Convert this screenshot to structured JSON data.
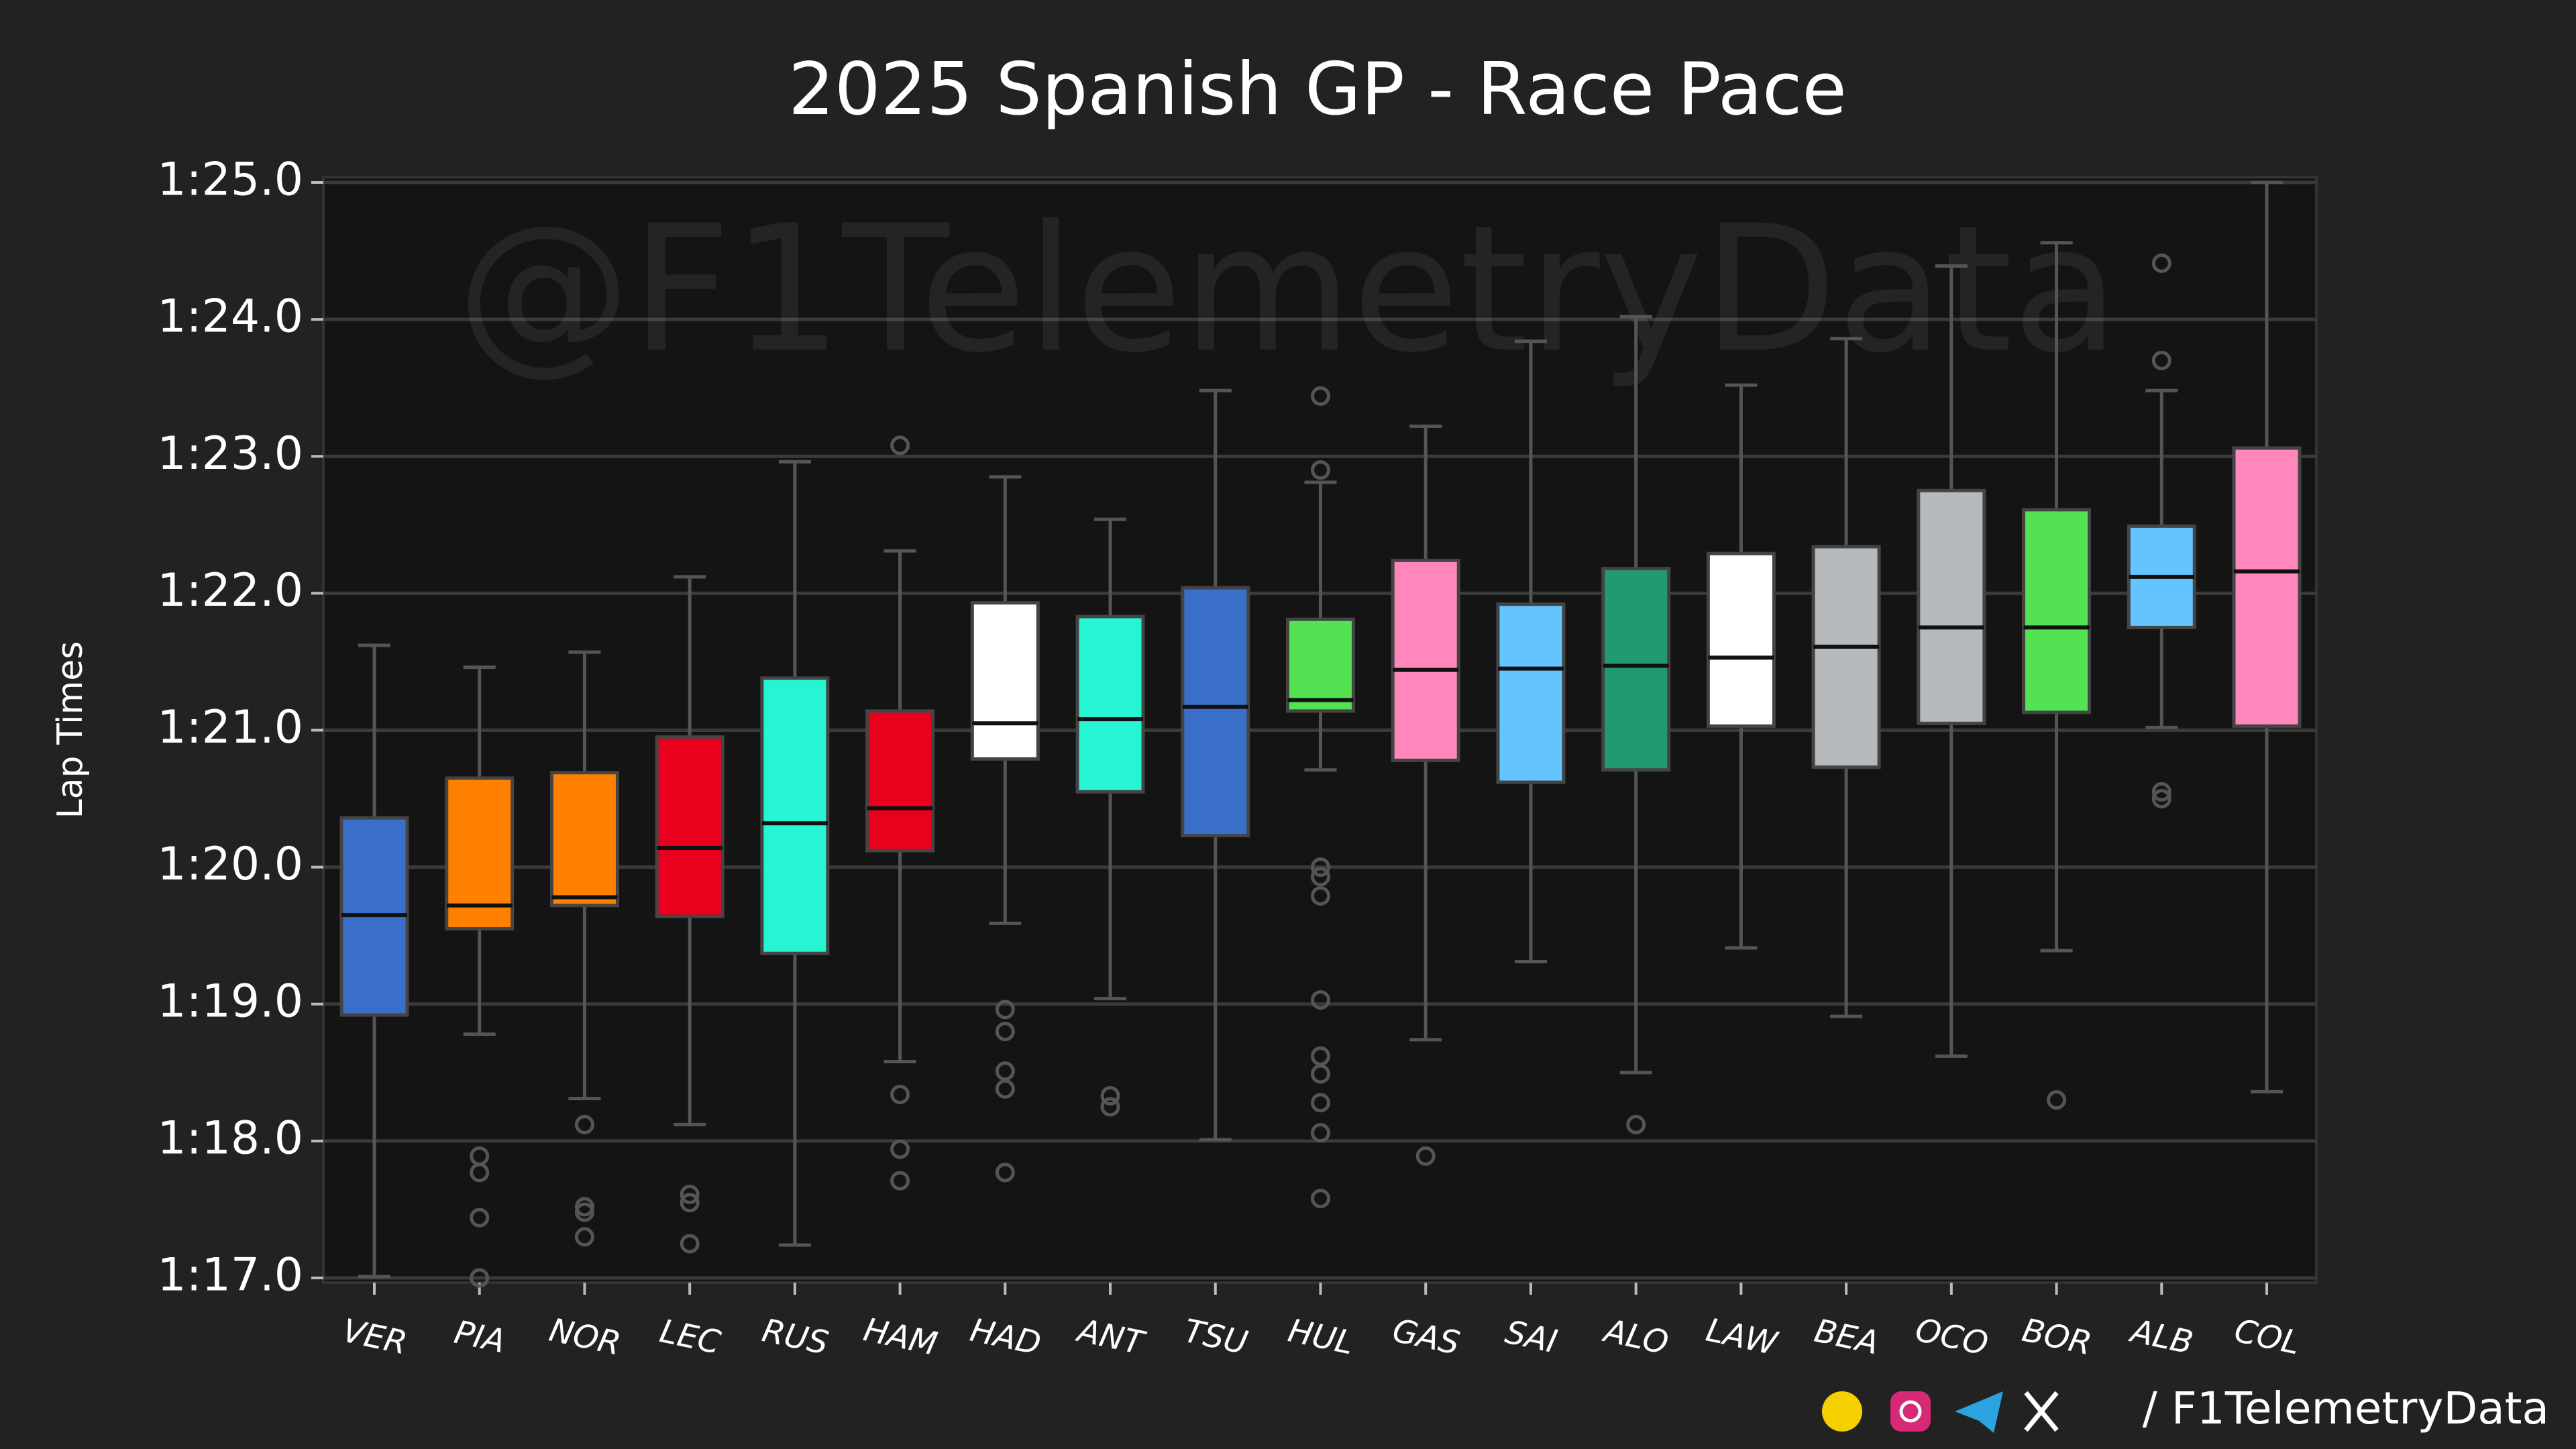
{
  "chart_data": {
    "type": "box",
    "title": "2025 Spanish GP - Race Pace",
    "ylabel": "Lap Times",
    "watermark": "@F1TelemetryData",
    "footer": "/ F1TelemetryData",
    "grid": true,
    "ylim": [
      77,
      85
    ],
    "yticks": [
      {
        "value": 77,
        "label": "1:17.0"
      },
      {
        "value": 78,
        "label": "1:18.0"
      },
      {
        "value": 79,
        "label": "1:19.0"
      },
      {
        "value": 80,
        "label": "1:20.0"
      },
      {
        "value": 81,
        "label": "1:21.0"
      },
      {
        "value": 82,
        "label": "1:22.0"
      },
      {
        "value": 83,
        "label": "1:23.0"
      },
      {
        "value": 84,
        "label": "1:24.0"
      },
      {
        "value": 85,
        "label": "1:25.0"
      }
    ],
    "categories": [
      "VER",
      "PIA",
      "NOR",
      "LEC",
      "RUS",
      "HAM",
      "HAD",
      "ANT",
      "TSU",
      "HUL",
      "GAS",
      "SAI",
      "ALO",
      "LAW",
      "BEA",
      "OCO",
      "BOR",
      "ALB",
      "COL"
    ],
    "boxes": [
      {
        "color": "#3a6fc9",
        "whislo": 77.01,
        "q1": 78.92,
        "med": 79.65,
        "q3": 80.36,
        "whishi": 81.62,
        "fliers": []
      },
      {
        "color": "#ff8000",
        "whislo": 78.78,
        "q1": 79.55,
        "med": 79.72,
        "q3": 80.65,
        "whishi": 81.46,
        "fliers": [
          77.89,
          77.77,
          77.44,
          77.0
        ]
      },
      {
        "color": "#ff8000",
        "whislo": 78.31,
        "q1": 79.72,
        "med": 79.78,
        "q3": 80.69,
        "whishi": 81.57,
        "fliers": [
          78.12,
          77.52,
          77.48,
          77.3
        ]
      },
      {
        "color": "#e8001d",
        "whislo": 78.12,
        "q1": 79.64,
        "med": 80.14,
        "q3": 80.95,
        "whishi": 82.12,
        "fliers": [
          77.61,
          77.55,
          77.25
        ]
      },
      {
        "color": "#27f4d2",
        "whislo": 77.24,
        "q1": 79.37,
        "med": 80.32,
        "q3": 81.38,
        "whishi": 82.96,
        "fliers": []
      },
      {
        "color": "#e8001d",
        "whislo": 78.58,
        "q1": 80.12,
        "med": 80.43,
        "q3": 81.14,
        "whishi": 82.31,
        "fliers": [
          83.08,
          78.34,
          77.94,
          77.71
        ]
      },
      {
        "color": "#ffffff",
        "whislo": 79.59,
        "q1": 80.79,
        "med": 81.05,
        "q3": 81.93,
        "whishi": 82.85,
        "fliers": [
          78.96,
          78.8,
          78.51,
          78.38,
          77.77
        ]
      },
      {
        "color": "#27f4d2",
        "whislo": 79.04,
        "q1": 80.55,
        "med": 81.08,
        "q3": 81.83,
        "whishi": 82.54,
        "fliers": [
          78.33,
          78.25
        ]
      },
      {
        "color": "#3a6fc9",
        "whislo": 78.01,
        "q1": 80.23,
        "med": 81.17,
        "q3": 82.04,
        "whishi": 83.48,
        "fliers": []
      },
      {
        "color": "#52e252",
        "whislo": 80.71,
        "q1": 81.14,
        "med": 81.22,
        "q3": 81.81,
        "whishi": 82.81,
        "fliers": [
          83.44,
          82.9,
          80.0,
          79.93,
          79.79,
          79.03,
          78.62,
          78.49,
          78.28,
          78.06,
          77.58
        ]
      },
      {
        "color": "#ff87bc",
        "whislo": 78.74,
        "q1": 80.78,
        "med": 81.44,
        "q3": 82.24,
        "whishi": 83.22,
        "fliers": [
          77.89
        ]
      },
      {
        "color": "#64c4ff",
        "whislo": 79.31,
        "q1": 80.62,
        "med": 81.45,
        "q3": 81.92,
        "whishi": 83.84,
        "fliers": []
      },
      {
        "color": "#229971",
        "whislo": 78.5,
        "q1": 80.71,
        "med": 81.47,
        "q3": 82.18,
        "whishi": 84.02,
        "fliers": [
          78.12
        ]
      },
      {
        "color": "#ffffff",
        "whislo": 79.41,
        "q1": 81.03,
        "med": 81.53,
        "q3": 82.29,
        "whishi": 83.52,
        "fliers": []
      },
      {
        "color": "#b6babd",
        "whislo": 78.91,
        "q1": 80.73,
        "med": 81.61,
        "q3": 82.34,
        "whishi": 83.86,
        "fliers": []
      },
      {
        "color": "#b6babd",
        "whislo": 78.62,
        "q1": 81.05,
        "med": 81.75,
        "q3": 82.75,
        "whishi": 84.39,
        "fliers": []
      },
      {
        "color": "#52e252",
        "whislo": 79.39,
        "q1": 81.13,
        "med": 81.75,
        "q3": 82.61,
        "whishi": 84.56,
        "fliers": [
          78.3
        ]
      },
      {
        "color": "#64c4ff",
        "whislo": 81.02,
        "q1": 81.75,
        "med": 82.12,
        "q3": 82.49,
        "whishi": 83.48,
        "fliers": [
          84.41,
          83.7,
          80.55,
          80.5
        ]
      },
      {
        "color": "#ff87bc",
        "whislo": 78.36,
        "q1": 81.03,
        "med": 82.16,
        "q3": 83.06,
        "whishi": 85.0,
        "fliers": []
      }
    ]
  }
}
